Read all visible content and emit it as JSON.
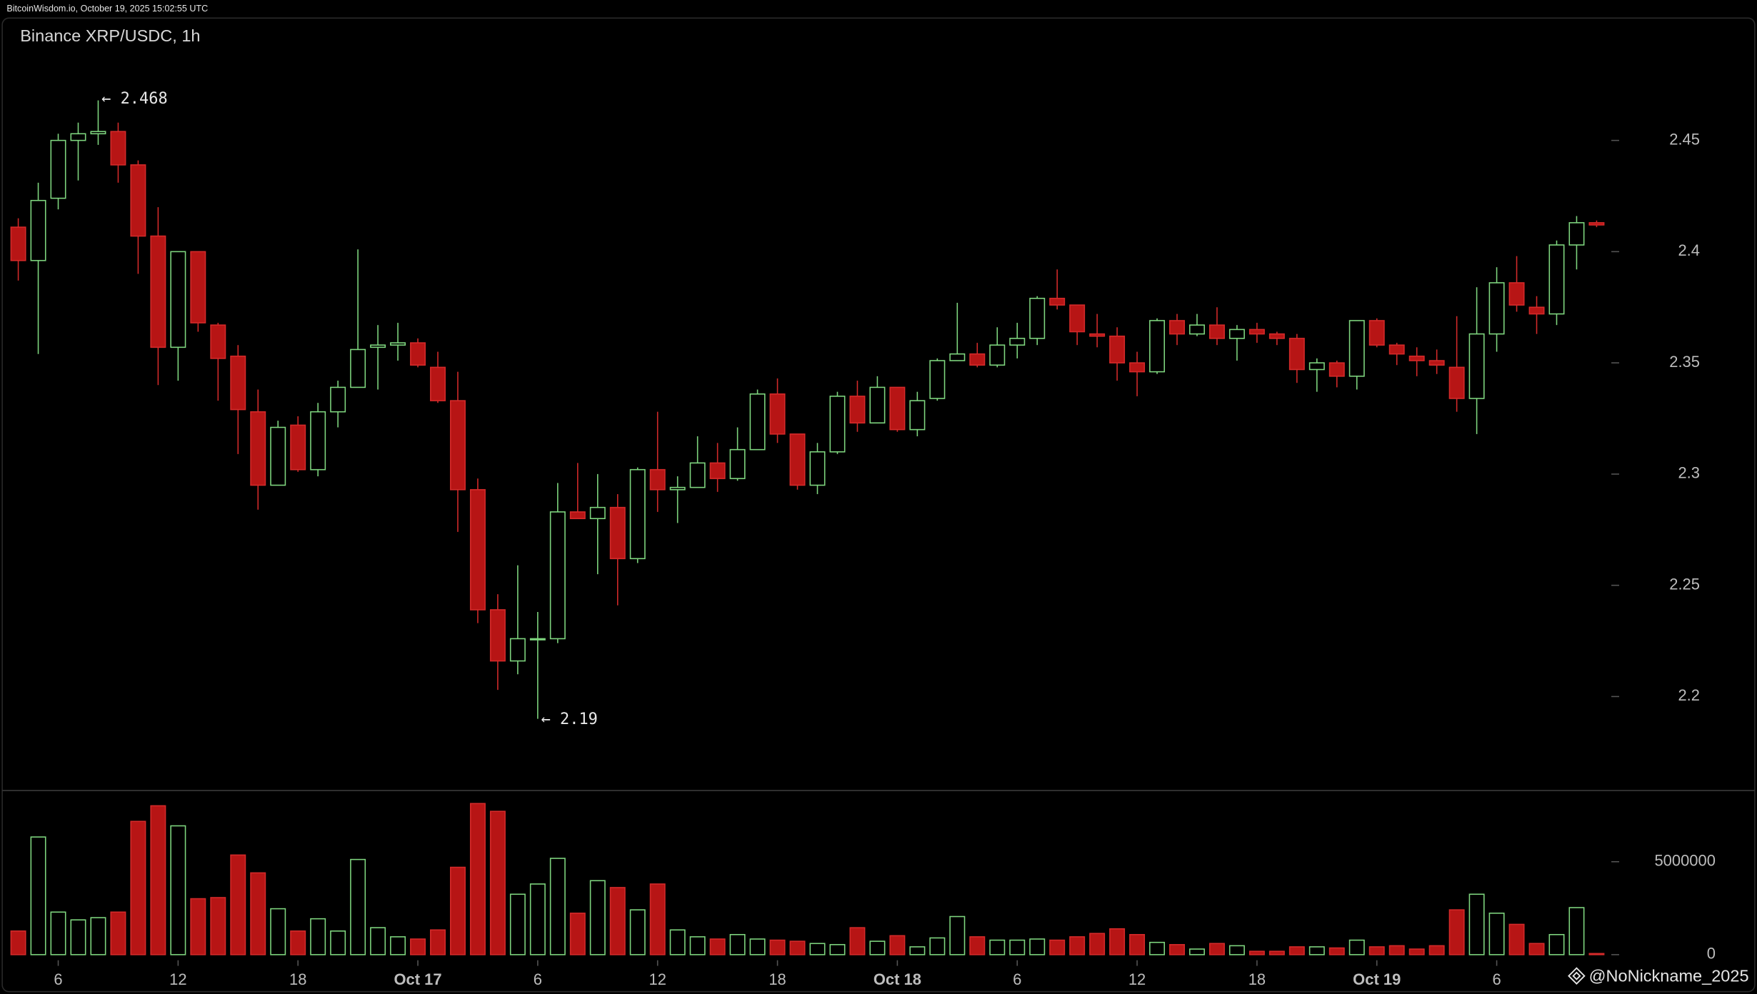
{
  "header": "BitcoinWisdom.io, October 19, 2025 15:02:55 UTC",
  "watermark": "@NoNickname_2025",
  "chart_data": {
    "type": "candlestick",
    "title": "Binance XRP/USDC, 1h",
    "categories": [
      null,
      null,
      "6",
      null,
      null,
      null,
      null,
      null,
      "12",
      null,
      null,
      null,
      null,
      null,
      "18",
      null,
      null,
      null,
      null,
      null,
      "Oct 17",
      null,
      null,
      null,
      null,
      null,
      "6",
      null,
      null,
      null,
      null,
      null,
      "12",
      null,
      null,
      null,
      null,
      null,
      "18",
      null,
      null,
      null,
      null,
      null,
      "Oct 18",
      null,
      null,
      null,
      null,
      null,
      "6",
      null,
      null,
      null,
      null,
      null,
      "12",
      null,
      null,
      null,
      null,
      null,
      "18",
      null,
      null,
      null,
      null,
      null,
      "Oct 19",
      null,
      null,
      null,
      null,
      null,
      "6",
      null,
      null,
      null,
      null,
      null
    ],
    "open": [
      2.411,
      2.396,
      2.424,
      2.45,
      2.453,
      2.454,
      2.439,
      2.407,
      2.357,
      2.4,
      2.367,
      2.353,
      2.328,
      2.295,
      2.322,
      2.302,
      2.328,
      2.339,
      2.357,
      2.358,
      2.359,
      2.348,
      2.333,
      2.293,
      2.239,
      2.216,
      2.226,
      2.226,
      2.283,
      2.28,
      2.285,
      2.262,
      2.302,
      2.293,
      2.294,
      2.305,
      2.298,
      2.311,
      2.336,
      2.318,
      2.295,
      2.31,
      2.335,
      2.323,
      2.339,
      2.32,
      2.334,
      2.351,
      2.354,
      2.349,
      2.358,
      2.361,
      2.379,
      2.376,
      2.363,
      2.362,
      2.35,
      2.346,
      2.369,
      2.363,
      2.367,
      2.361,
      2.365,
      2.363,
      2.361,
      2.347,
      2.35,
      2.344,
      2.369,
      2.358,
      2.353,
      2.351,
      2.348,
      2.334,
      2.363,
      2.386,
      2.375,
      2.372,
      2.403,
      2.413
    ],
    "high": [
      2.415,
      2.431,
      2.453,
      2.458,
      2.468,
      2.458,
      2.441,
      2.42,
      2.4,
      2.4,
      2.368,
      2.358,
      2.338,
      2.324,
      2.326,
      2.332,
      2.342,
      2.401,
      2.367,
      2.368,
      2.361,
      2.355,
      2.346,
      2.298,
      2.246,
      2.259,
      2.238,
      2.296,
      2.305,
      2.3,
      2.291,
      2.303,
      2.328,
      2.299,
      2.317,
      2.314,
      2.321,
      2.338,
      2.343,
      2.318,
      2.314,
      2.337,
      2.342,
      2.344,
      2.339,
      2.337,
      2.352,
      2.377,
      2.359,
      2.366,
      2.368,
      2.38,
      2.392,
      2.376,
      2.372,
      2.366,
      2.355,
      2.37,
      2.372,
      2.372,
      2.375,
      2.367,
      2.368,
      2.364,
      2.363,
      2.352,
      2.351,
      2.369,
      2.37,
      2.359,
      2.357,
      2.356,
      2.371,
      2.384,
      2.393,
      2.398,
      2.38,
      2.405,
      2.416,
      2.414
    ],
    "low": [
      2.387,
      2.354,
      2.419,
      2.432,
      2.448,
      2.431,
      2.39,
      2.34,
      2.342,
      2.364,
      2.333,
      2.309,
      2.284,
      2.295,
      2.301,
      2.299,
      2.321,
      2.339,
      2.338,
      2.351,
      2.348,
      2.332,
      2.274,
      2.233,
      2.203,
      2.21,
      2.19,
      2.224,
      2.28,
      2.255,
      2.241,
      2.26,
      2.283,
      2.278,
      2.294,
      2.292,
      2.297,
      2.311,
      2.314,
      2.293,
      2.291,
      2.309,
      2.319,
      2.323,
      2.319,
      2.317,
      2.333,
      2.351,
      2.348,
      2.348,
      2.352,
      2.358,
      2.374,
      2.358,
      2.357,
      2.342,
      2.335,
      2.345,
      2.358,
      2.362,
      2.358,
      2.351,
      2.359,
      2.358,
      2.341,
      2.337,
      2.339,
      2.338,
      2.357,
      2.349,
      2.344,
      2.345,
      2.328,
      2.318,
      2.355,
      2.373,
      2.363,
      2.367,
      2.392,
      2.411
    ],
    "close": [
      2.396,
      2.423,
      2.45,
      2.453,
      2.454,
      2.439,
      2.407,
      2.357,
      2.4,
      2.368,
      2.352,
      2.329,
      2.295,
      2.321,
      2.302,
      2.328,
      2.339,
      2.356,
      2.358,
      2.359,
      2.349,
      2.333,
      2.293,
      2.239,
      2.216,
      2.226,
      2.226,
      2.283,
      2.28,
      2.285,
      2.262,
      2.302,
      2.293,
      2.294,
      2.305,
      2.298,
      2.311,
      2.336,
      2.318,
      2.295,
      2.31,
      2.335,
      2.323,
      2.339,
      2.32,
      2.333,
      2.351,
      2.354,
      2.349,
      2.358,
      2.361,
      2.379,
      2.376,
      2.364,
      2.362,
      2.35,
      2.346,
      2.369,
      2.363,
      2.367,
      2.361,
      2.365,
      2.363,
      2.361,
      2.347,
      2.35,
      2.344,
      2.369,
      2.358,
      2.354,
      2.351,
      2.349,
      2.334,
      2.363,
      2.386,
      2.376,
      2.372,
      2.403,
      2.413,
      2.412
    ],
    "volume": [
      1270000,
      6330000,
      2290000,
      1870000,
      1990000,
      2290000,
      7170000,
      8010000,
      6930000,
      3010000,
      3070000,
      5360000,
      4400000,
      2470000,
      1270000,
      1930000,
      1270000,
      5120000,
      1450000,
      960000,
      840000,
      1330000,
      4700000,
      8130000,
      7710000,
      3250000,
      3800000,
      5180000,
      2230000,
      3980000,
      3610000,
      2410000,
      3800000,
      1330000,
      960000,
      840000,
      1080000,
      840000,
      780000,
      720000,
      600000,
      540000,
      1450000,
      720000,
      1020000,
      420000,
      900000,
      2050000,
      960000,
      780000,
      780000,
      840000,
      780000,
      960000,
      1140000,
      1390000,
      1080000,
      660000,
      540000,
      300000,
      600000,
      480000,
      180000,
      180000,
      420000,
      420000,
      360000,
      780000,
      420000,
      480000,
      300000,
      480000,
      2410000,
      3250000,
      2230000,
      1630000,
      600000,
      1080000,
      2530000,
      60000
    ],
    "up_color": "#7fd67f",
    "down_color": "#b71515",
    "ylim": [
      2.158,
      2.505
    ],
    "yticks": [
      2.2,
      2.25,
      2.3,
      2.35,
      2.4,
      2.45
    ],
    "volume_ylim": [
      0,
      8800000
    ],
    "volume_yticks": [
      0,
      5000000
    ],
    "high_annotation": "← 2.468",
    "low_annotation": "← 2.19"
  }
}
